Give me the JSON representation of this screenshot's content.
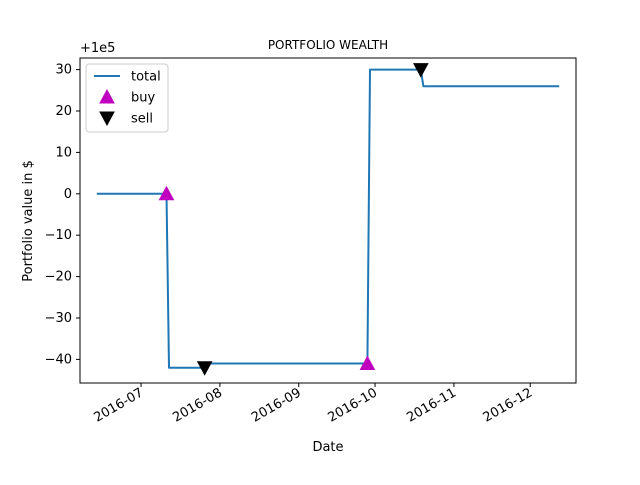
{
  "chart_data": {
    "type": "line",
    "title": "PORTFOLIO WEALTH",
    "xlabel": "Date",
    "ylabel": "Portfolio value in $",
    "offset_label": "+1e5",
    "x_ticks": [
      "2016-07",
      "2016-08",
      "2016-09",
      "2016-10",
      "2016-11",
      "2016-12"
    ],
    "y_ticks": [
      "30",
      "20",
      "10",
      "0",
      "−10",
      "−20",
      "−30",
      "−40"
    ],
    "y_tick_values": [
      30,
      20,
      10,
      0,
      -10,
      -20,
      -30,
      -40
    ],
    "ylim": [
      -45.7,
      32.8
    ],
    "xlim": [
      "2016-06-07",
      "2016-12-19"
    ],
    "grid": false,
    "legend_position": "top-left",
    "series": [
      {
        "name": "total",
        "color": "#1f77b4",
        "points": [
          [
            "2016-06-14",
            0
          ],
          [
            "2016-07-11",
            0
          ],
          [
            "2016-07-12",
            -42
          ],
          [
            "2016-07-26",
            -42
          ],
          [
            "2016-07-27",
            -41
          ],
          [
            "2016-09-28",
            -41
          ],
          [
            "2016-09-29",
            30
          ],
          [
            "2016-10-19",
            30
          ],
          [
            "2016-10-20",
            26
          ],
          [
            "2016-12-12",
            26
          ]
        ]
      }
    ],
    "markers": [
      {
        "name": "buy",
        "marker": "triangle-up",
        "color": "#bf00bf",
        "points": [
          [
            "2016-07-11",
            0
          ],
          [
            "2016-09-28",
            -41
          ]
        ]
      },
      {
        "name": "sell",
        "marker": "triangle-down",
        "color": "#000000",
        "points": [
          [
            "2016-07-26",
            -42
          ],
          [
            "2016-10-19",
            30
          ]
        ]
      }
    ]
  }
}
